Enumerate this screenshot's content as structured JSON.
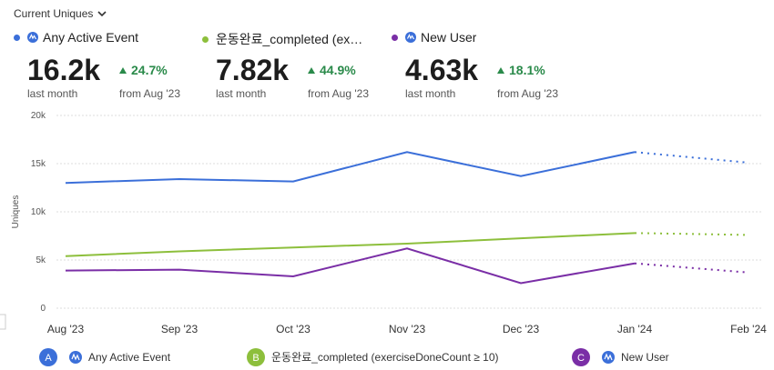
{
  "header": {
    "title": "Current Uniques"
  },
  "summaries": [
    {
      "value": "16.2k",
      "period": "last month",
      "change": "24.7%",
      "compare": "from Aug '23"
    },
    {
      "value": "7.82k",
      "period": "last month",
      "change": "44.9%",
      "compare": "from Aug '23"
    },
    {
      "value": "4.63k",
      "period": "last month",
      "change": "18.1%",
      "compare": "from Aug '23"
    }
  ],
  "chart_data": {
    "type": "line",
    "ylabel": "Uniques",
    "categories": [
      "Aug '23",
      "Sep '23",
      "Oct '23",
      "Nov '23",
      "Dec '23",
      "Jan '24",
      "Feb '24"
    ],
    "series": [
      {
        "name": "Any Active Event",
        "letter": "A",
        "color": "#3b6fd9",
        "values": [
          13000,
          13400,
          13150,
          16200,
          13700,
          16200,
          15100
        ]
      },
      {
        "name": "운동완료_completed (exerciseDoneCount ≥ 10)",
        "letter": "B",
        "color": "#8dbf3c",
        "values": [
          5400,
          5900,
          6300,
          6700,
          7250,
          7800,
          7600
        ]
      },
      {
        "name": "New User",
        "letter": "C",
        "color": "#7a2ea6",
        "values": [
          3900,
          4000,
          3300,
          6200,
          2600,
          4650,
          3700
        ]
      }
    ],
    "ylim": [
      0,
      20000
    ],
    "yticks": [
      0,
      {
        "value": 5000,
        "label": "5k"
      },
      {
        "value": 10000,
        "label": "10k"
      },
      {
        "value": 15000,
        "label": "15k"
      },
      {
        "value": 20000,
        "label": "20k"
      }
    ],
    "grid": true,
    "dotted_last_segment": true
  }
}
